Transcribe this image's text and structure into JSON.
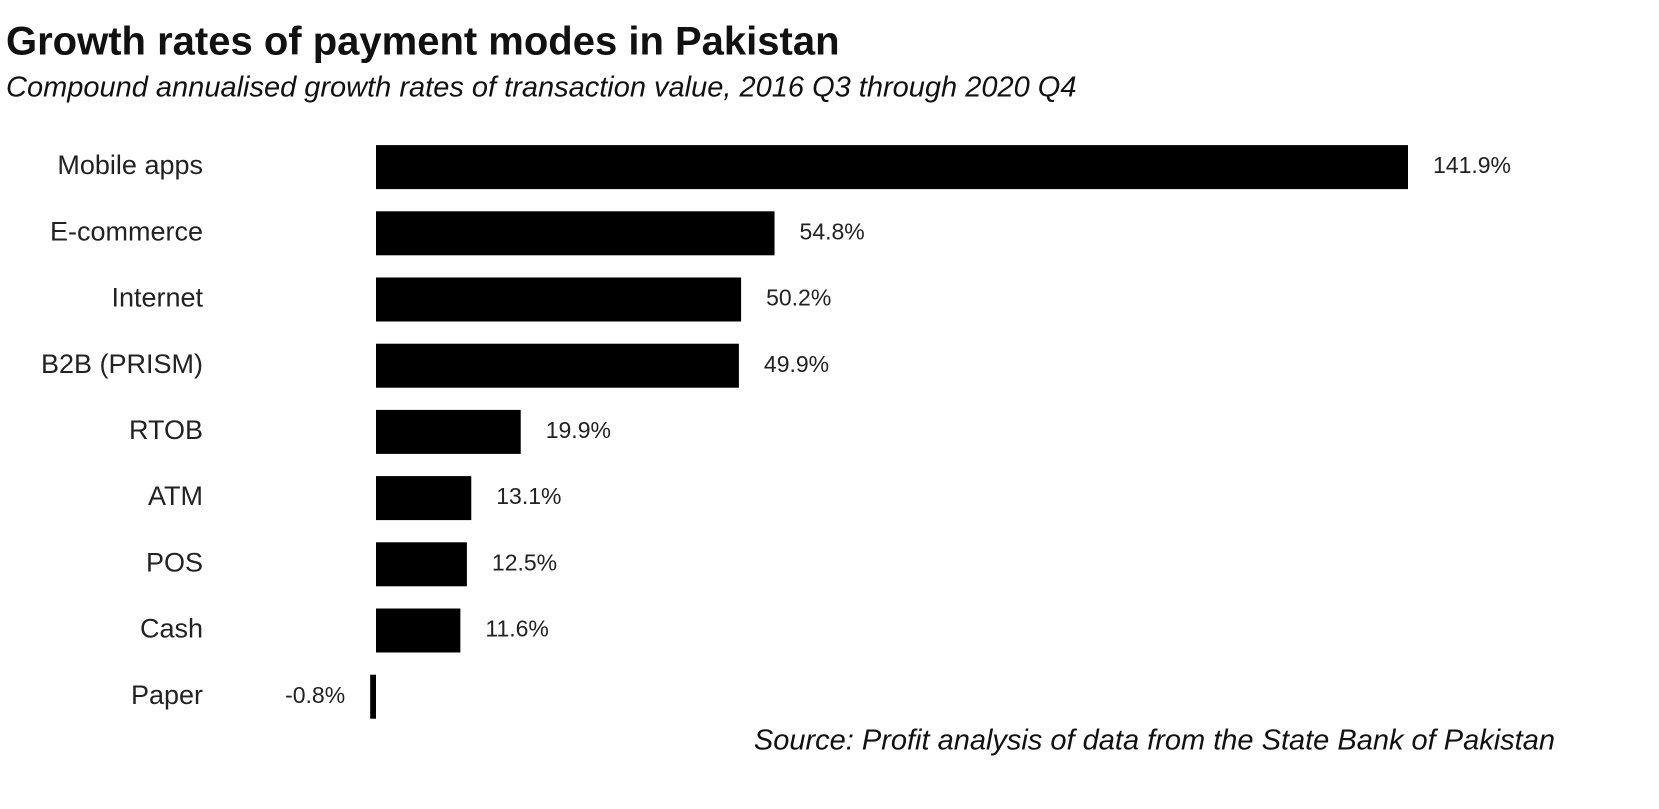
{
  "chart_data": {
    "type": "bar",
    "orientation": "horizontal",
    "title": "Growth rates of payment modes in Pakistan",
    "subtitle": "Compound annualised growth rates of transaction value, 2016 Q3 through 2020 Q4",
    "categories": [
      "Mobile apps",
      "E-commerce",
      "Internet",
      "B2B (PRISM)",
      "RTOB",
      "ATM",
      "POS",
      "Cash",
      "Paper"
    ],
    "values": [
      141.9,
      54.8,
      50.2,
      49.9,
      19.9,
      13.1,
      12.5,
      11.6,
      -0.8
    ],
    "value_labels": [
      "141.9%",
      "54.8%",
      "50.2%",
      "49.9%",
      "19.9%",
      "13.1%",
      "12.5%",
      "11.6%",
      "-0.8%"
    ],
    "color": "#000000",
    "source": "Source: Profit analysis of data from the State Bank of Pakistan"
  }
}
